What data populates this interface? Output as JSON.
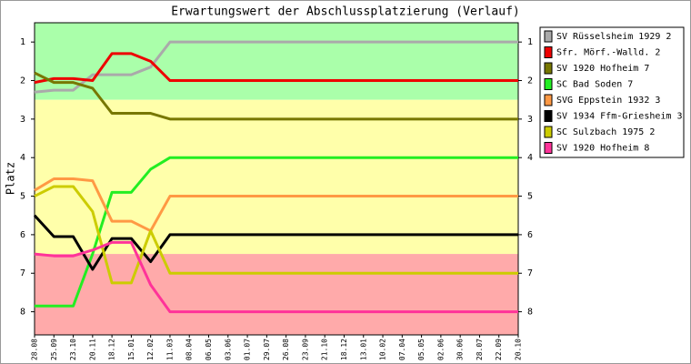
{
  "chart_data": {
    "type": "line",
    "title": "Erwartungswert der Abschlussplatzierung (Verlauf)",
    "y_label": "Platz",
    "categories": [
      "28.08",
      "25.09",
      "23.10",
      "20.11",
      "18.12",
      "15.01",
      "12.02",
      "11.03",
      "08.04",
      "06.05",
      "03.06",
      "01.07",
      "29.07",
      "26.08",
      "23.09",
      "21.10",
      "18.12",
      "13.01",
      "10.02",
      "07.04",
      "05.05",
      "02.06",
      "30.06",
      "28.07",
      "22.09",
      "20.10"
    ],
    "ylim": [
      8.6,
      0.5
    ],
    "yticks": [
      1,
      2,
      3,
      4,
      5,
      6,
      7,
      8
    ],
    "bands": [
      {
        "from": 0.5,
        "to": 2.5,
        "color": "#aaffaa"
      },
      {
        "from": 2.5,
        "to": 6.5,
        "color": "#ffffaa"
      },
      {
        "from": 6.5,
        "to": 8.6,
        "color": "#ffaaaa"
      }
    ],
    "series": [
      {
        "name": "SV Rüsselsheim 1929 2",
        "color": "#aaaaaa",
        "values": [
          2.3,
          2.25,
          2.25,
          1.85,
          1.85,
          1.85,
          1.65,
          1,
          1,
          1,
          1,
          1,
          1,
          1,
          1,
          1,
          1,
          1,
          1,
          1,
          1,
          1,
          1,
          1,
          1,
          1
        ]
      },
      {
        "name": "Sfr. Mörf.-Walld. 2",
        "color": "#ee0000",
        "values": [
          2.05,
          1.95,
          1.95,
          2,
          1.3,
          1.3,
          1.5,
          2,
          2,
          2,
          2,
          2,
          2,
          2,
          2,
          2,
          2,
          2,
          2,
          2,
          2,
          2,
          2,
          2,
          2,
          2
        ]
      },
      {
        "name": "SV 1920 Hofheim 7",
        "color": "#777700",
        "values": [
          1.8,
          2.05,
          2.05,
          2.2,
          2.85,
          2.85,
          2.85,
          3,
          3,
          3,
          3,
          3,
          3,
          3,
          3,
          3,
          3,
          3,
          3,
          3,
          3,
          3,
          3,
          3,
          3,
          3
        ]
      },
      {
        "name": "SC Bad Soden 7",
        "color": "#22ee22",
        "values": [
          7.85,
          7.85,
          7.85,
          6.5,
          4.9,
          4.9,
          4.3,
          4,
          4,
          4,
          4,
          4,
          4,
          4,
          4,
          4,
          4,
          4,
          4,
          4,
          4,
          4,
          4,
          4,
          4,
          4
        ]
      },
      {
        "name": "SVG Eppstein 1932 3",
        "color": "#ff9944",
        "values": [
          4.85,
          4.55,
          4.55,
          4.6,
          5.65,
          5.65,
          5.9,
          5,
          5,
          5,
          5,
          5,
          5,
          5,
          5,
          5,
          5,
          5,
          5,
          5,
          5,
          5,
          5,
          5,
          5,
          5
        ]
      },
      {
        "name": "SV 1934 Ffm-Griesheim 3",
        "color": "#000000",
        "values": [
          5.5,
          6.05,
          6.05,
          6.9,
          6.1,
          6.1,
          6.7,
          6,
          6,
          6,
          6,
          6,
          6,
          6,
          6,
          6,
          6,
          6,
          6,
          6,
          6,
          6,
          6,
          6,
          6,
          6
        ]
      },
      {
        "name": "SC Sulzbach 1975 2",
        "color": "#cccc00",
        "values": [
          5,
          4.75,
          4.75,
          5.4,
          7.25,
          7.25,
          5.9,
          7,
          7,
          7,
          7,
          7,
          7,
          7,
          7,
          7,
          7,
          7,
          7,
          7,
          7,
          7,
          7,
          7,
          7,
          7
        ]
      },
      {
        "name": "SV 1920 Hofheim 8",
        "color": "#ff3399",
        "values": [
          6.5,
          6.55,
          6.55,
          6.4,
          6.2,
          6.2,
          7.3,
          8,
          8,
          8,
          8,
          8,
          8,
          8,
          8,
          8,
          8,
          8,
          8,
          8,
          8,
          8,
          8,
          8,
          8,
          8
        ]
      }
    ]
  }
}
